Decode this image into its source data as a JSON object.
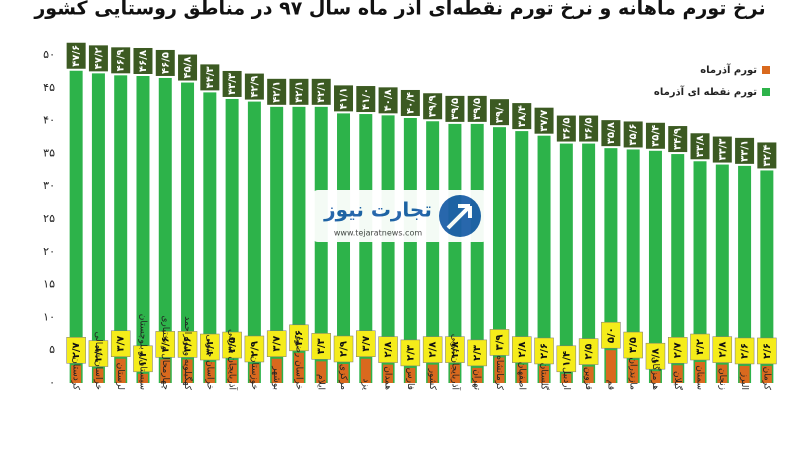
{
  "chart_data": {
    "type": "bar",
    "title": "نرخ تورم ماهانه و نرخ تورم نقطه‌ای آذر ماه سال ۹۷ در مناطق روستایی کشور",
    "categories": [
      "کردستان",
      "خراسان شمالی",
      "لرستان",
      "سیستان و بلوچستان",
      "چهارمحال و بختیاری",
      "کهگیلویه و بویراحمد",
      "خراسان جنوبی",
      "آذربایجان شرقی",
      "خوزستان",
      "بوشهر",
      "خراسان رضوی",
      "ایلام",
      "مرکزی",
      "یزد",
      "همدان",
      "فارس",
      "کشور",
      "آذربایجان غربی",
      "تهران",
      "کرمانشاه",
      "اصفهان",
      "گلستان",
      "اردبیل",
      "قزوین",
      "قم",
      "مازندران",
      "هرمزگان",
      "گیلان",
      "سمنان",
      "زنجان",
      "البرز",
      "کرمان"
    ],
    "series": [
      {
        "name": "تورم آذرماه",
        "color": "#d9691e",
        "values": [
          2.7,
          2.2,
          3.7,
          1.4,
          3.6,
          3.6,
          3.2,
          3.5,
          2.9,
          3.7,
          4.6,
          3.3,
          2.9,
          3.7,
          2.8,
          2.3,
          2.8,
          2.8,
          2.3,
          3.9,
          2.8,
          2.6,
          1.4,
          2.5,
          5.0,
          3.5,
          1.8,
          2.7,
          3.2,
          2.8,
          2.6,
          2.6
        ],
        "value_labels": [
          "۲/۷",
          "۲/۲",
          "۳/۷",
          "۱/۴",
          "۳/۶",
          "۳/۶",
          "۳/۲",
          "۳/۵",
          "۲/۹",
          "۳/۷",
          "۴/۶",
          "۳/۳",
          "۲/۹",
          "۳/۷",
          "۲/۸",
          "۲/۳",
          "۲/۸",
          "۲/۸",
          "۲/۳",
          "۳/۹",
          "۲/۸",
          "۲/۶",
          "۱/۴",
          "۲/۵",
          "۵/۰",
          "۳/۵",
          "۱/۸",
          "۲/۷",
          "۳/۲",
          "۲/۸",
          "۲/۶",
          "۲/۶"
        ]
      },
      {
        "name": "تورم نقطه ای آذرماه",
        "color": "#2db34a",
        "values": [
          47.6,
          47.2,
          46.9,
          46.8,
          46.5,
          45.8,
          44.3,
          43.3,
          42.9,
          42.1,
          42.1,
          42.1,
          41.1,
          41.0,
          40.8,
          40.4,
          39.9,
          39.5,
          39.5,
          39.0,
          38.4,
          37.7,
          36.5,
          36.5,
          35.8,
          35.6,
          35.4,
          34.9,
          33.8,
          33.3,
          33.1,
          32.4
        ],
        "value_labels": [
          "۴۷/۶",
          "۴۷/۲",
          "۴۶/۹",
          "۴۶/۸",
          "۴۶/۵",
          "۴۵/۸",
          "۴۴/۳",
          "۴۳/۳",
          "۴۲/۹",
          "۴۲/۱",
          "۴۲/۱",
          "۴۲/۱",
          "۴۱/۱",
          "۴۱/۰",
          "۴۰/۸",
          "۴۰/۴",
          "۳۹/۹",
          "۳۹/۵",
          "۳۹/۵",
          "۳۹/۰",
          "۳۸/۴",
          "۳۷/۷",
          "۳۶/۵",
          "۳۶/۵",
          "۳۵/۸",
          "۳۵/۶",
          "۳۵/۴",
          "۳۴/۹",
          "۳۳/۸",
          "۳۳/۳",
          "۳۳/۱",
          "۳۲/۴"
        ]
      }
    ],
    "ylim": [
      0,
      50
    ],
    "yticks": [
      {
        "value": 0,
        "label": "۰"
      },
      {
        "value": 5,
        "label": "۵"
      },
      {
        "value": 10,
        "label": "۱۰"
      },
      {
        "value": 15,
        "label": "۱۵"
      },
      {
        "value": 20,
        "label": "۲۰"
      },
      {
        "value": 25,
        "label": "۲۵"
      },
      {
        "value": 30,
        "label": "۳۰"
      },
      {
        "value": 35,
        "label": "۳۵"
      },
      {
        "value": 40,
        "label": "۴۰"
      },
      {
        "value": 45,
        "label": "۴۵"
      },
      {
        "value": 50,
        "label": "۵۰"
      }
    ],
    "grid": false,
    "legend": "upper right",
    "watermark": {
      "brand": "تجارت نیوز",
      "url": "www.tejaratnews.com"
    }
  }
}
